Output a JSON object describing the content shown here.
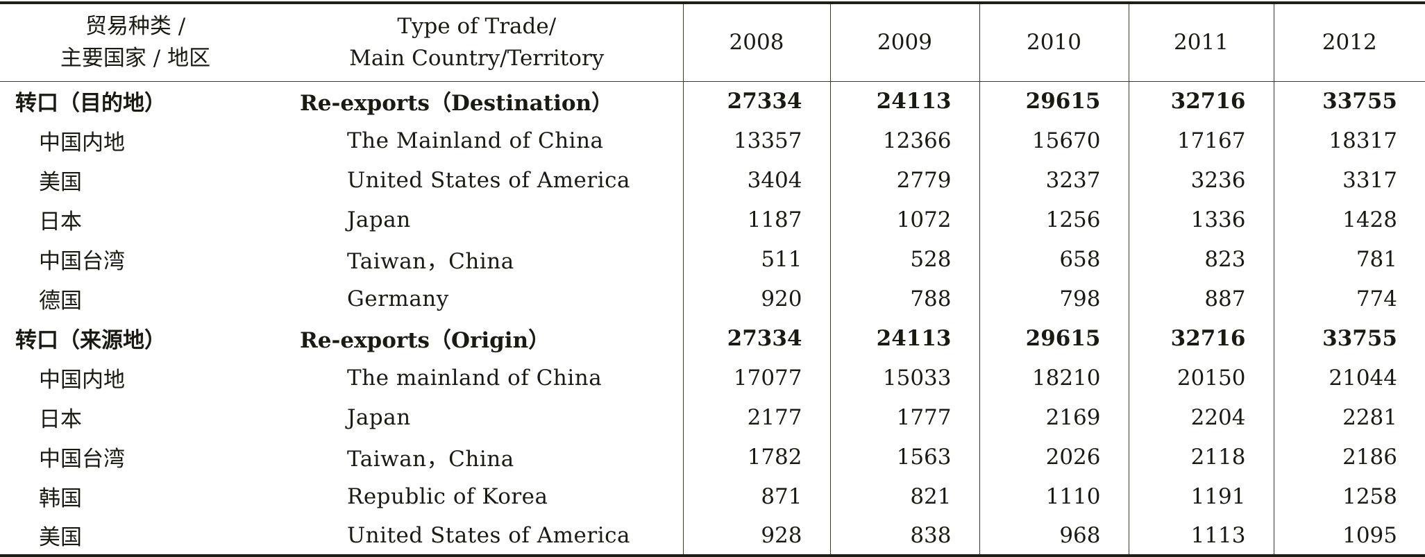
{
  "header": {
    "zh_line1": "贸易种类 /",
    "zh_line2": "主要国家 / 地区",
    "en_line1": "Type of Trade/",
    "en_line2": "Main Country/Territory",
    "years": [
      "2008",
      "2009",
      "2010",
      "2011",
      "2012"
    ]
  },
  "rows": [
    {
      "zh": "转口（目的地）",
      "en": "Re-exports（Destination）",
      "values": [
        "27334",
        "24113",
        "29615",
        "32716",
        "33755"
      ],
      "group": true
    },
    {
      "zh": "中国内地",
      "en": "The Mainland of China",
      "values": [
        "13357",
        "12366",
        "15670",
        "17167",
        "18317"
      ],
      "group": false
    },
    {
      "zh": "美国",
      "en": "United States of America",
      "values": [
        "3404",
        "2779",
        "3237",
        "3236",
        "3317"
      ],
      "group": false
    },
    {
      "zh": "日本",
      "en": "Japan",
      "values": [
        "1187",
        "1072",
        "1256",
        "1336",
        "1428"
      ],
      "group": false
    },
    {
      "zh": "中国台湾",
      "en": "Taiwan，China",
      "values": [
        "511",
        "528",
        "658",
        "823",
        "781"
      ],
      "group": false
    },
    {
      "zh": "德国",
      "en": "Germany",
      "values": [
        "920",
        "788",
        "798",
        "887",
        "774"
      ],
      "group": false
    },
    {
      "zh": "转口（来源地）",
      "en": "Re-exports（Origin）",
      "values": [
        "27334",
        "24113",
        "29615",
        "32716",
        "33755"
      ],
      "group": true
    },
    {
      "zh": "中国内地",
      "en": "The mainland of China",
      "values": [
        "17077",
        "15033",
        "18210",
        "20150",
        "21044"
      ],
      "group": false
    },
    {
      "zh": "日本",
      "en": "Japan",
      "values": [
        "2177",
        "1777",
        "2169",
        "2204",
        "2281"
      ],
      "group": false
    },
    {
      "zh": "中国台湾",
      "en": "Taiwan，China",
      "values": [
        "1782",
        "1563",
        "2026",
        "2118",
        "2186"
      ],
      "group": false
    },
    {
      "zh": "韩国",
      "en": "Republic of Korea",
      "values": [
        "871",
        "821",
        "1110",
        "1191",
        "1258"
      ],
      "group": false
    },
    {
      "zh": "美国",
      "en": "United States of America",
      "values": [
        "928",
        "838",
        "968",
        "1113",
        "1095"
      ],
      "group": false
    }
  ]
}
